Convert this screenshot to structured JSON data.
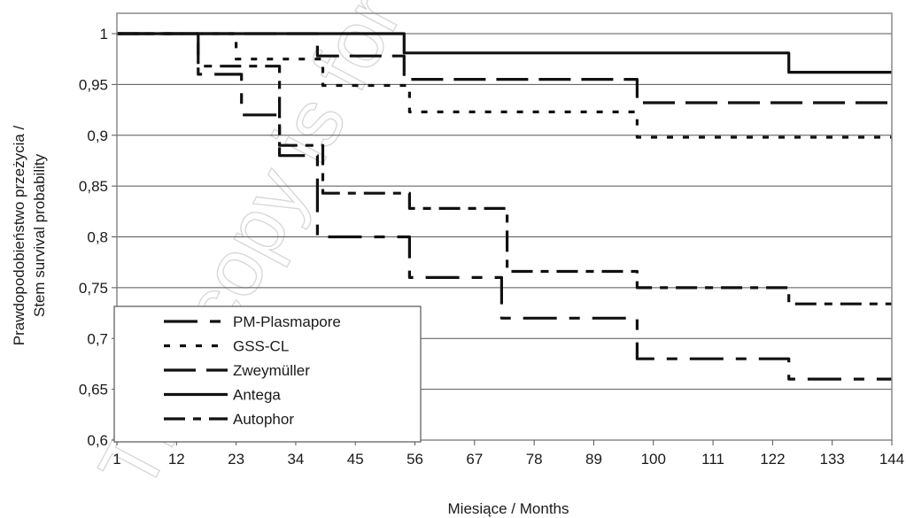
{
  "watermark": "This copy is for personal use",
  "chart_data": {
    "type": "line",
    "step": true,
    "xlabel": "Miesiące / Months",
    "ylabel_lines": [
      "Prawdopodobieństwo przeżycia /",
      "Stem survival probability"
    ],
    "x_ticks": [
      1,
      12,
      23,
      34,
      45,
      56,
      67,
      78,
      89,
      100,
      111,
      122,
      133,
      144
    ],
    "xlim": [
      1,
      144
    ],
    "y_ticks": [
      1,
      0.95,
      0.9,
      0.85,
      0.8,
      0.75,
      0.7,
      0.65,
      0.6
    ],
    "y_tick_labels": [
      "1",
      "0,95",
      "0,9",
      "0,85",
      "0,8",
      "0,75",
      "0,7",
      "0,65",
      "0,6"
    ],
    "ylim": [
      0.6,
      1.0
    ],
    "grid": "horizontal",
    "legend_position": "bottom-left",
    "series": [
      {
        "name": "PM-Plasmapore",
        "dash": "38,14,12,14",
        "points": [
          [
            1,
            1
          ],
          [
            16,
            1
          ],
          [
            16,
            0.96
          ],
          [
            24,
            0.96
          ],
          [
            24,
            0.92
          ],
          [
            31,
            0.92
          ],
          [
            31,
            0.88
          ],
          [
            38,
            0.88
          ],
          [
            38,
            0.8
          ],
          [
            55,
            0.8
          ],
          [
            55,
            0.76
          ],
          [
            72,
            0.76
          ],
          [
            72,
            0.72
          ],
          [
            97,
            0.72
          ],
          [
            97,
            0.68
          ],
          [
            125,
            0.68
          ],
          [
            125,
            0.66
          ],
          [
            144,
            0.66
          ]
        ]
      },
      {
        "name": "GSS-CL",
        "dash": "7,11",
        "points": [
          [
            1,
            1
          ],
          [
            23,
            1
          ],
          [
            23,
            0.975
          ],
          [
            39,
            0.975
          ],
          [
            39,
            0.949
          ],
          [
            55,
            0.949
          ],
          [
            55,
            0.923
          ],
          [
            97,
            0.923
          ],
          [
            97,
            0.898
          ],
          [
            144,
            0.898
          ]
        ]
      },
      {
        "name": "Zweymüller",
        "dash": "36,12",
        "points": [
          [
            1,
            1
          ],
          [
            38,
            1
          ],
          [
            38,
            0.978
          ],
          [
            54,
            0.978
          ],
          [
            54,
            0.955
          ],
          [
            97,
            0.955
          ],
          [
            97,
            0.932
          ],
          [
            144,
            0.932
          ]
        ]
      },
      {
        "name": "Antega",
        "dash": "",
        "points": [
          [
            1,
            1
          ],
          [
            54,
            1
          ],
          [
            54,
            0.981
          ],
          [
            125,
            0.981
          ],
          [
            125,
            0.962
          ],
          [
            144,
            0.962
          ]
        ]
      },
      {
        "name": "Autophor",
        "dash": "24,9,9,9",
        "points": [
          [
            1,
            1
          ],
          [
            16,
            1
          ],
          [
            16,
            0.968
          ],
          [
            31,
            0.968
          ],
          [
            31,
            0.89
          ],
          [
            39,
            0.89
          ],
          [
            39,
            0.843
          ],
          [
            55,
            0.843
          ],
          [
            55,
            0.828
          ],
          [
            73,
            0.828
          ],
          [
            73,
            0.766
          ],
          [
            97,
            0.766
          ],
          [
            97,
            0.75
          ],
          [
            125,
            0.75
          ],
          [
            125,
            0.734
          ],
          [
            144,
            0.734
          ]
        ]
      }
    ]
  }
}
